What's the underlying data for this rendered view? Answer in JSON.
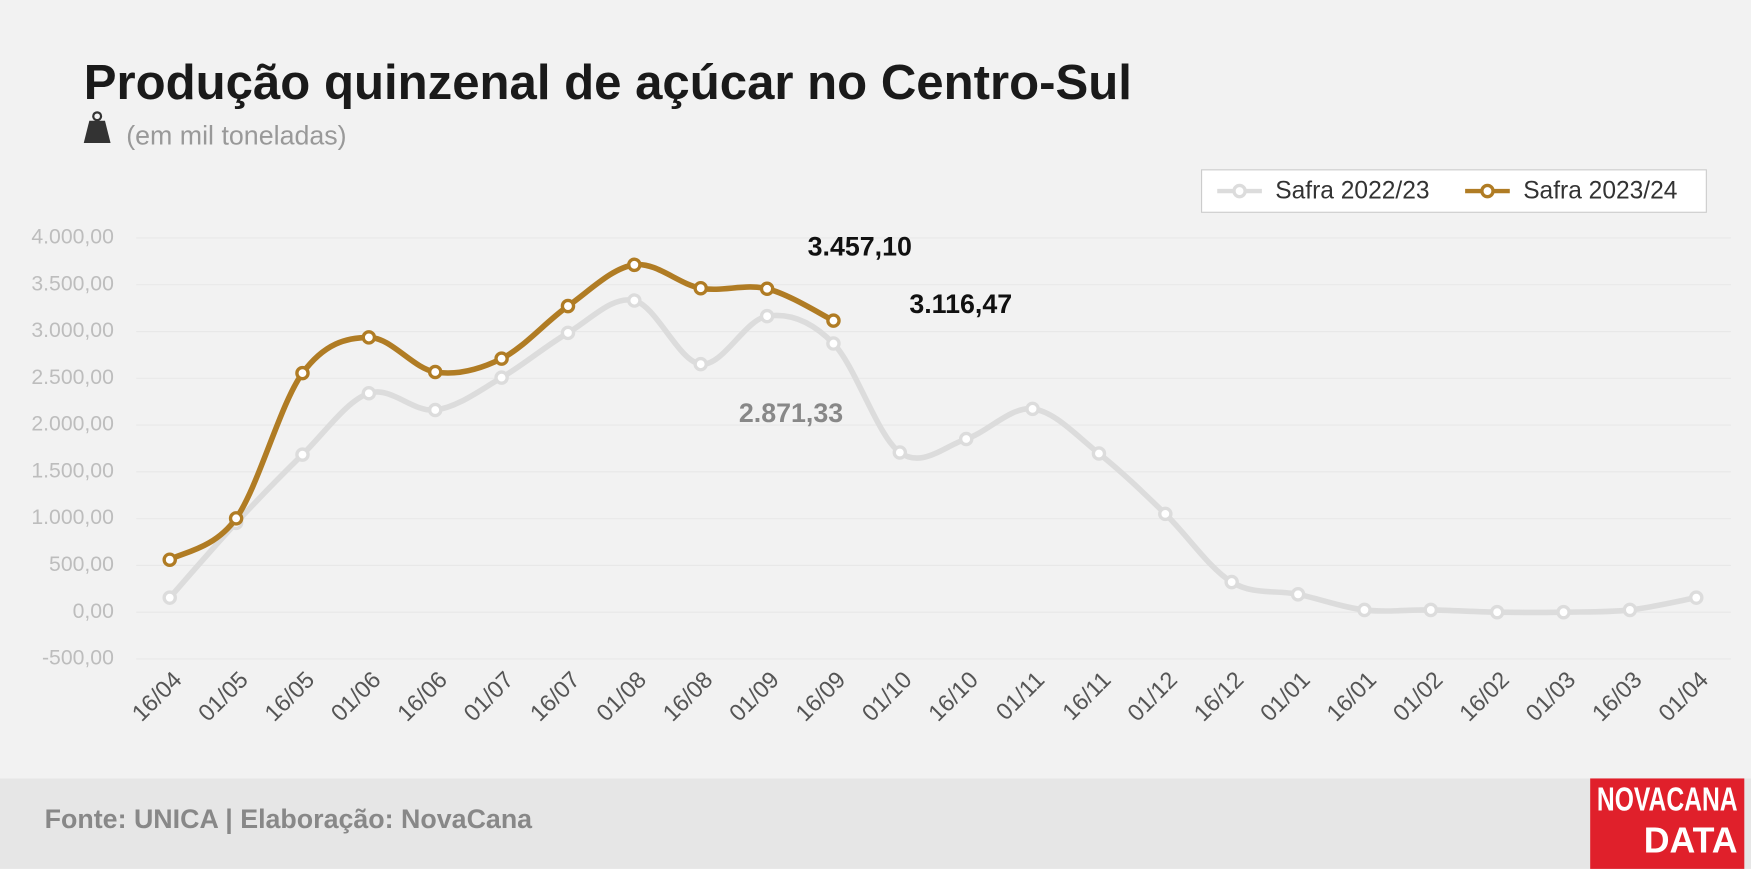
{
  "chart_data": {
    "type": "line",
    "title": "Produção quinzenal de açúcar no Centro-Sul",
    "subtitle": "(em mil toneladas)",
    "source": "Fonte: UNICA | Elaboração: NovaCana",
    "logo": [
      "NOVACANA",
      "DATA"
    ],
    "categories": [
      "16/04",
      "01/05",
      "16/05",
      "01/06",
      "16/06",
      "01/07",
      "16/07",
      "01/08",
      "16/08",
      "01/09",
      "16/09",
      "01/10",
      "16/10",
      "01/11",
      "16/11",
      "01/12",
      "16/12",
      "01/01",
      "16/01",
      "01/02",
      "16/02",
      "01/03",
      "16/03",
      "01/04"
    ],
    "series": [
      {
        "name": "Safra 2022/23",
        "color": "#dcdcdc",
        "values": [
          155,
          955,
          1684,
          2340,
          2161,
          2507,
          2985,
          3331,
          2651,
          3164,
          2871.33,
          1707,
          1851,
          2173,
          1696,
          1051,
          322,
          191,
          24,
          24,
          0,
          0,
          24,
          155
        ],
        "value_labels": [
          null,
          null,
          null,
          null,
          null,
          null,
          null,
          null,
          null,
          null,
          "2.871,33",
          null,
          null,
          null,
          null,
          null,
          null,
          null,
          null,
          null,
          null,
          null,
          null,
          null
        ]
      },
      {
        "name": "Safra 2023/24",
        "color": "#b07c24",
        "values": [
          561,
          1003,
          2555,
          2937,
          2567,
          2710,
          3272,
          3713,
          3463,
          3457.1,
          3116.47,
          null,
          null,
          null,
          null,
          null,
          null,
          null,
          null,
          null,
          null,
          null,
          null,
          null
        ],
        "value_labels": [
          null,
          null,
          null,
          null,
          null,
          null,
          null,
          null,
          null,
          "3.457,10",
          "3.116,47",
          null,
          null,
          null,
          null,
          null,
          null,
          null,
          null,
          null,
          null,
          null,
          null,
          null
        ]
      }
    ],
    "ylim": [
      -500,
      4000
    ],
    "yticks": [
      {
        "value": -500,
        "label": "-500,00"
      },
      {
        "value": 0,
        "label": "0,00"
      },
      {
        "value": 500,
        "label": "500,00"
      },
      {
        "value": 1000,
        "label": "1.000,00"
      },
      {
        "value": 1500,
        "label": "1.500,00"
      },
      {
        "value": 2000,
        "label": "2.000,00"
      },
      {
        "value": 2500,
        "label": "2.500,00"
      },
      {
        "value": 3000,
        "label": "3.000,00"
      },
      {
        "value": 3500,
        "label": "3.500,00"
      },
      {
        "value": 4000,
        "label": "4.000,00"
      }
    ],
    "grid": true,
    "legend": "top-right"
  }
}
